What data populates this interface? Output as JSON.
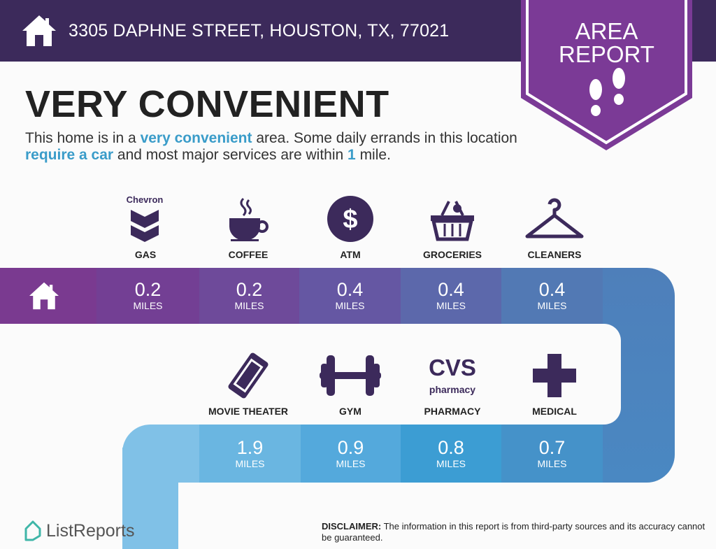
{
  "header": {
    "address": "3305 DAPHNE STREET, HOUSTON, TX, 77021",
    "badge_line1": "AREA",
    "badge_line2": "REPORT"
  },
  "main": {
    "title": "VERY CONVENIENT",
    "desc": {
      "p1": "This home is in a ",
      "h1": "very convenient",
      "p2": " area. Some daily errands in this location ",
      "h2": "require a car",
      "p3": " and most major services are within ",
      "h3": "1",
      "p4": " mile."
    }
  },
  "unit": "MILES",
  "top_row": [
    {
      "label": "GAS",
      "value": "0.2",
      "icon": "chevron-gas-icon",
      "brand": "Chevron",
      "color": "#733f94"
    },
    {
      "label": "COFFEE",
      "value": "0.2",
      "icon": "coffee-cup-icon",
      "color": "#6e4a9a"
    },
    {
      "label": "ATM",
      "value": "0.4",
      "icon": "dollar-icon",
      "color": "#6557a3"
    },
    {
      "label": "GROCERIES",
      "value": "0.4",
      "icon": "grocery-basket-icon",
      "color": "#5c68ab"
    },
    {
      "label": "CLEANERS",
      "value": "0.4",
      "icon": "hanger-icon",
      "color": "#5279b4"
    }
  ],
  "bottom_row": [
    {
      "label": "MOVIE THEATER",
      "value": "1.9",
      "icon": "ticket-icon",
      "color": "#6ab6e1"
    },
    {
      "label": "GYM",
      "value": "0.9",
      "icon": "dumbbell-icon",
      "color": "#54a9dc"
    },
    {
      "label": "PHARMACY",
      "value": "0.8",
      "icon": "cvs-pharmacy-icon",
      "brand": "CVS",
      "brand_sub": "pharmacy",
      "color": "#3c9dd3"
    },
    {
      "label": "MEDICAL",
      "value": "0.7",
      "icon": "medical-cross-icon",
      "color": "#4592c9"
    }
  ],
  "footer": {
    "logo": "ListReports",
    "disclaimer_label": "DISCLAIMER:",
    "disclaimer": " The information in this report is from third-party sources and its accuracy cannot be guaranteed."
  },
  "colors": {
    "header": "#3c2a5b",
    "badge": "#7b3a96",
    "icon": "#3c2a5b",
    "accent": "#3a9cc9"
  }
}
